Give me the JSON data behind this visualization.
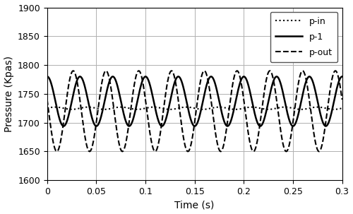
{
  "title": "",
  "xlabel": "Time (s)",
  "ylabel": "Pressure (Kpas)",
  "xlim": [
    0,
    0.3
  ],
  "ylim": [
    1600,
    1900
  ],
  "yticks": [
    1600,
    1650,
    1700,
    1750,
    1800,
    1850,
    1900
  ],
  "xticks": [
    0,
    0.05,
    0.1,
    0.15,
    0.2,
    0.25,
    0.3
  ],
  "xtick_labels": [
    "0",
    "0.05",
    "0.1",
    "0.15",
    "0.2",
    "0.25",
    "0.3"
  ],
  "freq": 30,
  "p_in_mean": 1725,
  "p_in_amp": 2,
  "p_in_phase": 0.0,
  "p1_mean": 1737,
  "p1_amp": 43,
  "p1_phase": 1.55,
  "pout_mean": 1720,
  "pout_amp": 70,
  "pout_phase": 2.85,
  "background_color": "#ffffff",
  "grid_color": "#b0b0b0",
  "legend_labels": [
    "p-in",
    "p-1",
    "p-out"
  ],
  "line_colors": [
    "#000000",
    "#000000",
    "#000000"
  ],
  "figsize": [
    5.0,
    3.03
  ],
  "dpi": 100
}
